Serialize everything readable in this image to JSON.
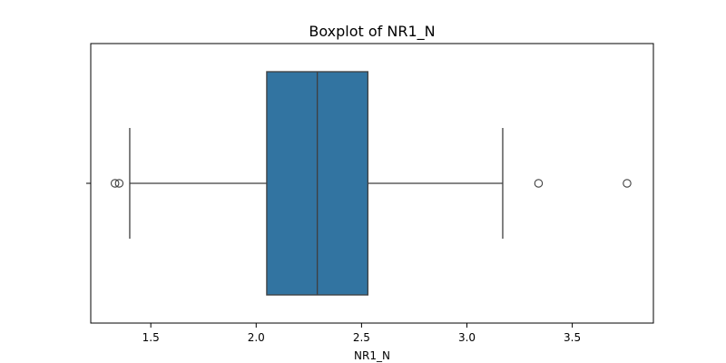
{
  "chart_data": {
    "type": "boxplot",
    "title": "Boxplot of NR1_N",
    "xlabel": "NR1_N",
    "ylabel": "",
    "orientation": "horizontal",
    "xlim": [
      1.215,
      3.885
    ],
    "xticks": [
      1.5,
      2.0,
      2.5,
      3.0,
      3.5
    ],
    "xtick_labels": [
      "1.5",
      "2.0",
      "2.5",
      "3.0",
      "3.5"
    ],
    "grid": false,
    "colors": {
      "box": "#3274a1",
      "lines": "#3f3f3f",
      "frame": "#000000"
    },
    "box": {
      "whisker_low": 1.4,
      "q1": 2.05,
      "median": 2.29,
      "q3": 2.53,
      "whisker_high": 3.17
    },
    "outliers": [
      1.33,
      1.35,
      3.34,
      3.76
    ]
  }
}
